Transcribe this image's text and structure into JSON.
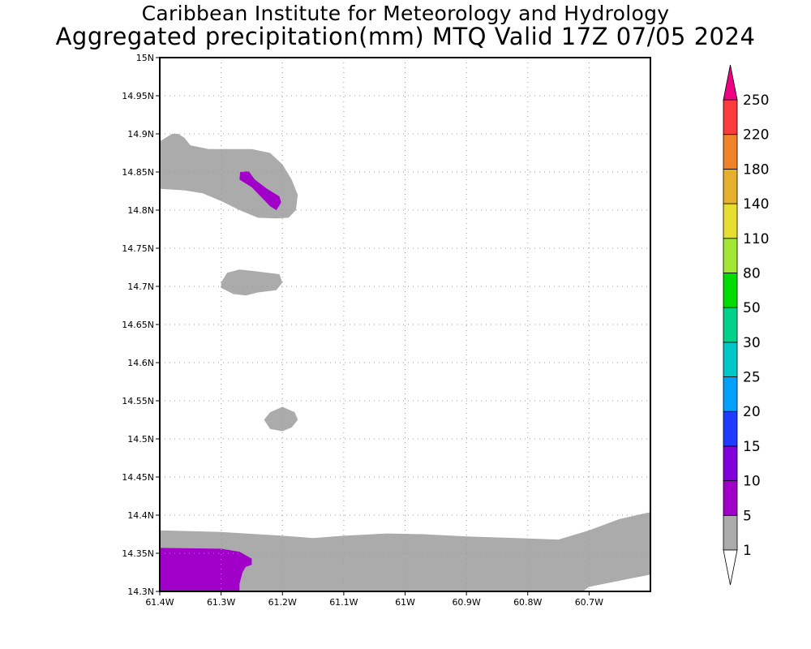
{
  "title": {
    "line1": "Caribbean Institute for Meteorology and Hydrology",
    "line2": "Aggregated precipitation(mm) MTQ Valid 17Z 07/05 2024"
  },
  "map": {
    "lon_range": [
      -61.4,
      -60.6
    ],
    "lat_range": [
      14.3,
      15.0
    ],
    "lat_ticks": [
      {
        "value": 15.0,
        "label": "15N"
      },
      {
        "value": 14.95,
        "label": "14.95N"
      },
      {
        "value": 14.9,
        "label": "14.9N"
      },
      {
        "value": 14.85,
        "label": "14.85N"
      },
      {
        "value": 14.8,
        "label": "14.8N"
      },
      {
        "value": 14.75,
        "label": "14.75N"
      },
      {
        "value": 14.7,
        "label": "14.7N"
      },
      {
        "value": 14.65,
        "label": "14.65N"
      },
      {
        "value": 14.6,
        "label": "14.6N"
      },
      {
        "value": 14.55,
        "label": "14.55N"
      },
      {
        "value": 14.5,
        "label": "14.5N"
      },
      {
        "value": 14.45,
        "label": "14.45N"
      },
      {
        "value": 14.4,
        "label": "14.4N"
      },
      {
        "value": 14.35,
        "label": "14.35N"
      },
      {
        "value": 14.3,
        "label": "14.3N"
      }
    ],
    "lon_ticks": [
      {
        "value": -61.4,
        "label": "61.4W"
      },
      {
        "value": -61.3,
        "label": "61.3W"
      },
      {
        "value": -61.2,
        "label": "61.2W"
      },
      {
        "value": -61.1,
        "label": "61.1W"
      },
      {
        "value": -61.0,
        "label": "61W"
      },
      {
        "value": -60.9,
        "label": "60.9W"
      },
      {
        "value": -60.8,
        "label": "60.8W"
      },
      {
        "value": -60.7,
        "label": "60.7W"
      }
    ],
    "grid": "dotted",
    "regions": [
      {
        "name": "north-band",
        "level": "1-5",
        "color": "#ababab",
        "points": [
          [
            -61.4,
            14.89
          ],
          [
            -61.38,
            14.9
          ],
          [
            -61.37,
            14.9
          ],
          [
            -61.36,
            14.895
          ],
          [
            -61.35,
            14.885
          ],
          [
            -61.32,
            14.88
          ],
          [
            -61.29,
            14.88
          ],
          [
            -61.25,
            14.88
          ],
          [
            -61.22,
            14.875
          ],
          [
            -61.2,
            14.86
          ],
          [
            -61.185,
            14.84
          ],
          [
            -61.175,
            14.82
          ],
          [
            -61.178,
            14.8
          ],
          [
            -61.19,
            14.79
          ],
          [
            -61.21,
            14.789
          ],
          [
            -61.24,
            14.79
          ],
          [
            -61.27,
            14.8
          ],
          [
            -61.3,
            14.812
          ],
          [
            -61.33,
            14.822
          ],
          [
            -61.36,
            14.826
          ],
          [
            -61.4,
            14.828
          ]
        ]
      },
      {
        "name": "north-core",
        "level": "5-10",
        "color": "#a000c8",
        "points": [
          [
            -61.269,
            14.85
          ],
          [
            -61.255,
            14.851
          ],
          [
            -61.245,
            14.84
          ],
          [
            -61.225,
            14.828
          ],
          [
            -61.205,
            14.818
          ],
          [
            -61.202,
            14.81
          ],
          [
            -61.21,
            14.8
          ],
          [
            -61.22,
            14.805
          ],
          [
            -61.25,
            14.83
          ],
          [
            -61.27,
            14.84
          ]
        ]
      },
      {
        "name": "center-blob",
        "level": "1-5",
        "color": "#ababab",
        "points": [
          [
            -61.3,
            14.705
          ],
          [
            -61.29,
            14.718
          ],
          [
            -61.27,
            14.722
          ],
          [
            -61.245,
            14.72
          ],
          [
            -61.205,
            14.716
          ],
          [
            -61.2,
            14.705
          ],
          [
            -61.21,
            14.695
          ],
          [
            -61.24,
            14.692
          ],
          [
            -61.26,
            14.688
          ],
          [
            -61.28,
            14.69
          ],
          [
            -61.3,
            14.698
          ]
        ]
      },
      {
        "name": "south-blob",
        "level": "1-5",
        "color": "#ababab",
        "points": [
          [
            -61.23,
            14.525
          ],
          [
            -61.22,
            14.535
          ],
          [
            -61.2,
            14.542
          ],
          [
            -61.18,
            14.535
          ],
          [
            -61.175,
            14.525
          ],
          [
            -61.185,
            14.515
          ],
          [
            -61.2,
            14.51
          ],
          [
            -61.22,
            14.513
          ]
        ]
      },
      {
        "name": "coast-band",
        "level": "1-5",
        "color": "#ababab",
        "points": [
          [
            -61.4,
            14.38
          ],
          [
            -61.3,
            14.378
          ],
          [
            -61.2,
            14.373
          ],
          [
            -61.15,
            14.37
          ],
          [
            -61.1,
            14.373
          ],
          [
            -61.03,
            14.376
          ],
          [
            -60.97,
            14.375
          ],
          [
            -60.9,
            14.372
          ],
          [
            -60.82,
            14.37
          ],
          [
            -60.75,
            14.368
          ],
          [
            -60.7,
            14.38
          ],
          [
            -60.65,
            14.395
          ],
          [
            -60.6,
            14.404
          ],
          [
            -60.6,
            14.322
          ],
          [
            -60.65,
            14.314
          ],
          [
            -60.7,
            14.306
          ],
          [
            -60.71,
            14.3
          ],
          [
            -61.4,
            14.3
          ]
        ]
      },
      {
        "name": "coast-core",
        "level": "5-10",
        "color": "#a000c8",
        "points": [
          [
            -61.4,
            14.357
          ],
          [
            -61.3,
            14.356
          ],
          [
            -61.27,
            14.352
          ],
          [
            -61.25,
            14.343
          ],
          [
            -61.25,
            14.335
          ],
          [
            -61.26,
            14.332
          ],
          [
            -61.265,
            14.325
          ],
          [
            -61.27,
            14.31
          ],
          [
            -61.27,
            14.3
          ],
          [
            -61.4,
            14.3
          ]
        ]
      }
    ]
  },
  "colorbar": {
    "levels": [
      "1",
      "5",
      "10",
      "15",
      "20",
      "25",
      "30",
      "50",
      "80",
      "110",
      "140",
      "180",
      "220",
      "250"
    ],
    "colors": [
      "#ababab",
      "#a000c8",
      "#8200dc",
      "#1e3cff",
      "#00a0ff",
      "#00c8c8",
      "#00d28c",
      "#00dc00",
      "#a0e632",
      "#e6dc32",
      "#e6af2d",
      "#f08228",
      "#fa3c3c",
      "#f00082"
    ],
    "under_color": "#ffffff",
    "over_color": "#f00082"
  }
}
